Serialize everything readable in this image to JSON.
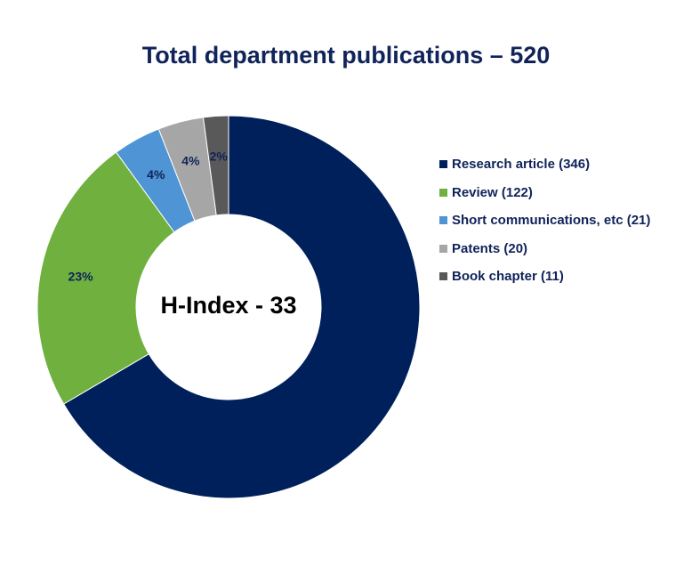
{
  "chart_data": {
    "type": "pie",
    "title": "Total department publications – 520",
    "center_label": "H-Index - 33",
    "legend_position": "right",
    "series": [
      {
        "name": "Research article (346)",
        "value": 346,
        "percent_label": "",
        "color": "#00205b"
      },
      {
        "name": "Review (122)",
        "value": 122,
        "percent_label": "23%",
        "color": "#6fb03f"
      },
      {
        "name": "Short communications, etc (21)",
        "value": 21,
        "percent_label": "4%",
        "color": "#4f94d4"
      },
      {
        "name": "Patents (20)",
        "value": 20,
        "percent_label": "4%",
        "color": "#a6a6a6"
      },
      {
        "name": "Book chapter (11)",
        "value": 11,
        "percent_label": "2%",
        "color": "#595959"
      }
    ]
  }
}
